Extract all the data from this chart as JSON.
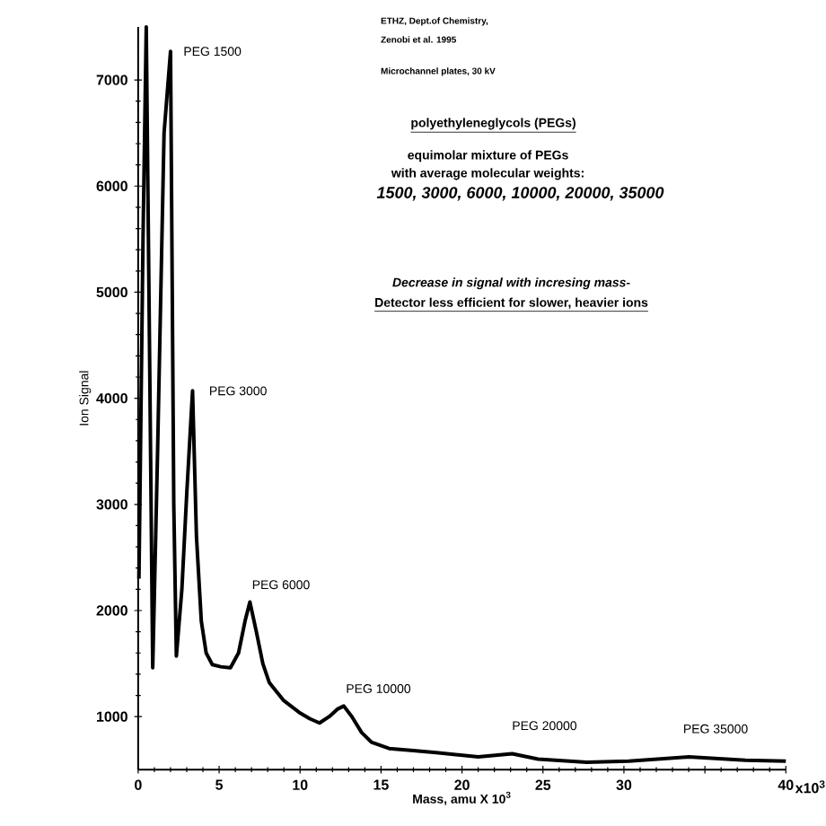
{
  "chart_data": {
    "type": "line",
    "xlabel": "Mass, amu X 10$^{3}$",
    "ylabel": "Ion Signal",
    "xlim": [
      0,
      40
    ],
    "ylim": [
      500,
      7500
    ],
    "xticks": [
      0,
      5,
      10,
      15,
      20,
      25,
      30,
      {
        "value": 35,
        "label": null
      },
      40
    ],
    "yticks": [
      1000,
      2000,
      3000,
      4000,
      5000,
      6000,
      7000
    ],
    "line_style": "solid",
    "series": [
      {
        "color": "#000000",
        "x": [
          0.05,
          0.3,
          0.5,
          0.7,
          0.9,
          1.2,
          1.6,
          2.0,
          2.2,
          2.36,
          2.7,
          3.0,
          3.36,
          3.6,
          3.9,
          4.2,
          4.58,
          5.1,
          5.7,
          6.2,
          6.6,
          6.9,
          7.3,
          7.7,
          8.1,
          9.0,
          9.94,
          10.6,
          11.2,
          11.8,
          12.3,
          12.7,
          13.2,
          13.8,
          14.4,
          15.5,
          17.0,
          18.4,
          21.0,
          23.1,
          24.7,
          27.7,
          30.3,
          34.0,
          37.5,
          40.0
        ],
        "values": [
          2300,
          5500,
          7500,
          4500,
          1460,
          3500,
          6500,
          7270,
          3000,
          1570,
          2200,
          3100,
          4070,
          2700,
          1900,
          1600,
          1490,
          1470,
          1460,
          1600,
          1900,
          2080,
          1800,
          1500,
          1320,
          1150,
          1040,
          980,
          940,
          1000,
          1070,
          1100,
          1000,
          850,
          760,
          700,
          680,
          660,
          620,
          650,
          600,
          570,
          580,
          620,
          590,
          580
        ]
      }
    ],
    "annotations": [
      "ETHZ, Dept.of Chemistry,",
      "Zenobi et al. 1995",
      "Microchannel plates, 30 kV",
      "polyethyleneglycols (PEGs)",
      "equimolar mixture of PEGs",
      "with average molecular weights:",
      "1500, 3000, 6000, 10000, 20000, 35000",
      "Decrease in signal with incresing mass-",
      "Detector less efficient for slower, heavier ions",
      "x10$^{3}$",
      {
        "text": "PEG 1500",
        "x": 2.0,
        "y": 7270
      },
      {
        "text": "PEG 3000",
        "x": 3.36,
        "y": 4070
      },
      {
        "text": "PEG 6000",
        "x": 6.9,
        "y": 2080
      },
      {
        "text": "PEG 10000",
        "x": 12.7,
        "y": 1100
      },
      {
        "text": "PEG 20000",
        "x": 23.1,
        "y": 650
      },
      {
        "text": "PEG 35000",
        "x": 34.0,
        "y": 620
      }
    ]
  }
}
